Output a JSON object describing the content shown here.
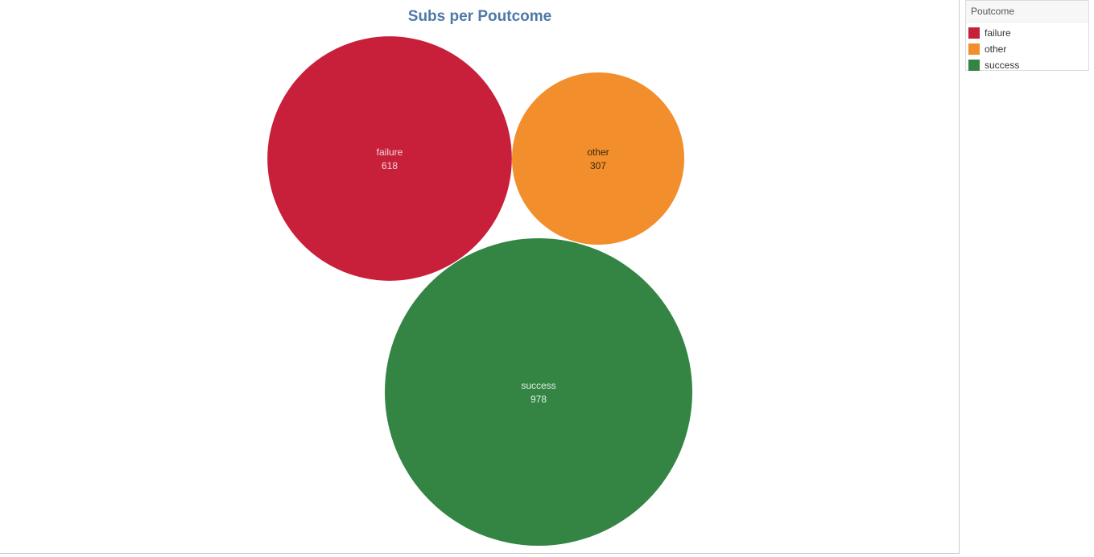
{
  "chart_data": {
    "type": "bubble",
    "title": "Subs per Poutcome",
    "series": [
      {
        "category": "failure",
        "value": 618,
        "color": "#c8203a",
        "label_color": "#f2d6da"
      },
      {
        "category": "other",
        "value": 307,
        "color": "#f28e2b",
        "label_color": "#3a2a10"
      },
      {
        "category": "success",
        "value": 978,
        "color": "#348444",
        "label_color": "#e2efe4"
      }
    ],
    "legend": {
      "title": "Poutcome",
      "placement": "top-right",
      "items": [
        {
          "label": "failure",
          "color": "#c8203a"
        },
        {
          "label": "other",
          "color": "#f28e2b"
        },
        {
          "label": "success",
          "color": "#348444"
        }
      ]
    }
  }
}
